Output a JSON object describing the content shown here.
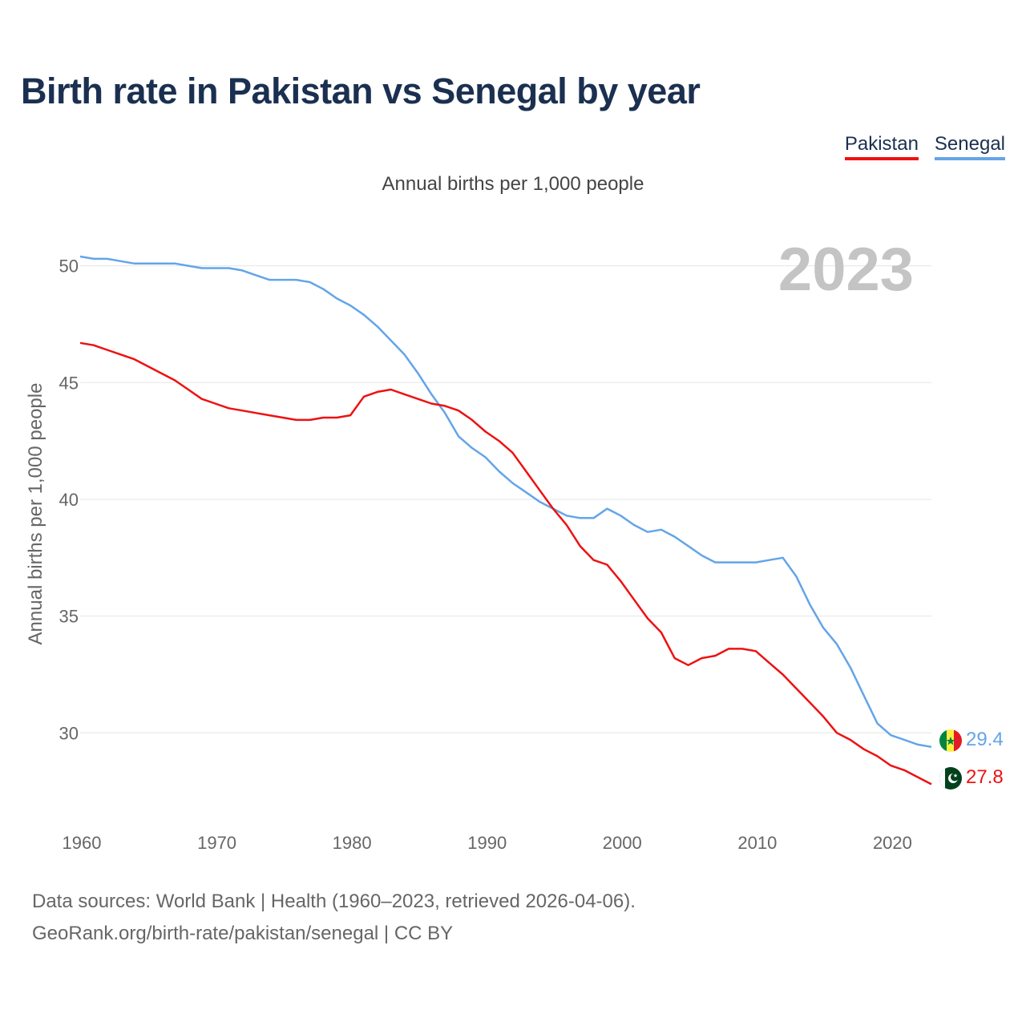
{
  "title": "Birth rate in Pakistan vs Senegal by year",
  "subtitle": "Annual births per 1,000 people",
  "year_watermark": "2023",
  "legend": [
    {
      "label": "Pakistan",
      "color": "#ee1111"
    },
    {
      "label": "Senegal",
      "color": "#63a5e8"
    }
  ],
  "footer": {
    "line1": "Data sources: World Bank | Health (1960–2023, retrieved 2026-04-06).",
    "line2": "GeoRank.org/birth-rate/pakistan/senegal | CC BY"
  },
  "chart_data": {
    "type": "line",
    "title": "Birth rate in Pakistan vs Senegal by year",
    "xlabel": "",
    "ylabel": "Annual births per 1,000 people",
    "xlim": [
      1960,
      2023
    ],
    "ylim": [
      26.2,
      51.6
    ],
    "x_ticks": [
      1960,
      1970,
      1980,
      1990,
      2000,
      2010,
      2020
    ],
    "y_ticks": [
      30,
      35,
      40,
      45,
      50
    ],
    "grid": true,
    "legend_position": "top-right",
    "x": [
      1960,
      1961,
      1962,
      1963,
      1964,
      1965,
      1966,
      1967,
      1968,
      1969,
      1970,
      1971,
      1972,
      1973,
      1974,
      1975,
      1976,
      1977,
      1978,
      1979,
      1980,
      1981,
      1982,
      1983,
      1984,
      1985,
      1986,
      1987,
      1988,
      1989,
      1990,
      1991,
      1992,
      1993,
      1994,
      1995,
      1996,
      1997,
      1998,
      1999,
      2000,
      2001,
      2002,
      2003,
      2004,
      2005,
      2006,
      2007,
      2008,
      2009,
      2010,
      2011,
      2012,
      2013,
      2014,
      2015,
      2016,
      2017,
      2018,
      2019,
      2020,
      2021,
      2022,
      2023
    ],
    "series": [
      {
        "name": "Pakistan",
        "color": "#ee1111",
        "end_label": "27.8",
        "values": [
          46.7,
          46.6,
          46.4,
          46.2,
          46.0,
          45.7,
          45.4,
          45.1,
          44.7,
          44.3,
          44.1,
          43.9,
          43.8,
          43.7,
          43.6,
          43.5,
          43.4,
          43.4,
          43.5,
          43.5,
          43.6,
          44.4,
          44.6,
          44.7,
          44.5,
          44.3,
          44.1,
          44.0,
          43.8,
          43.4,
          42.9,
          42.5,
          42.0,
          41.2,
          40.4,
          39.6,
          38.9,
          38.0,
          37.4,
          37.2,
          36.5,
          35.7,
          34.9,
          34.3,
          33.2,
          32.9,
          33.2,
          33.3,
          33.6,
          33.6,
          33.5,
          33.0,
          32.5,
          31.9,
          31.3,
          30.7,
          30.0,
          29.7,
          29.3,
          29.0,
          28.6,
          28.4,
          28.1,
          27.8
        ]
      },
      {
        "name": "Senegal",
        "color": "#63a5e8",
        "end_label": "29.4",
        "values": [
          50.4,
          50.3,
          50.3,
          50.2,
          50.1,
          50.1,
          50.1,
          50.1,
          50.0,
          49.9,
          49.9,
          49.9,
          49.8,
          49.6,
          49.4,
          49.4,
          49.4,
          49.3,
          49.0,
          48.6,
          48.3,
          47.9,
          47.4,
          46.8,
          46.2,
          45.4,
          44.5,
          43.7,
          42.7,
          42.2,
          41.8,
          41.2,
          40.7,
          40.3,
          39.9,
          39.6,
          39.3,
          39.2,
          39.2,
          39.6,
          39.3,
          38.9,
          38.6,
          38.7,
          38.4,
          38.0,
          37.6,
          37.3,
          37.3,
          37.3,
          37.3,
          37.4,
          37.5,
          36.7,
          35.5,
          34.5,
          33.8,
          32.8,
          31.6,
          30.4,
          29.9,
          29.7,
          29.5,
          29.4
        ]
      }
    ]
  }
}
